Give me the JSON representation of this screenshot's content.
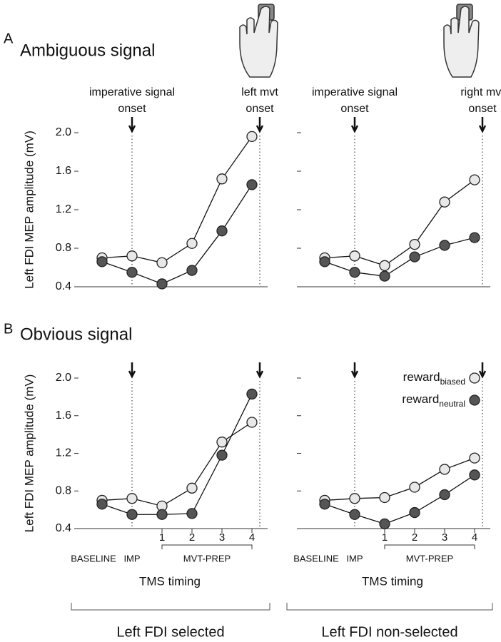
{
  "panels": [
    {
      "letter": "A",
      "title": "Ambiguous signal"
    },
    {
      "letter": "B",
      "title": "Obvious signal"
    }
  ],
  "groups": [
    "Left FDI selected",
    "Left FDI non-selected"
  ],
  "chart_data": [
    {
      "type": "line",
      "ylabel": "Left FDI MEP amplitude (mV)",
      "onset_labels": [
        [
          "imperative signal",
          "onset"
        ],
        [
          "left mvt",
          "onset"
        ]
      ],
      "categories": [
        null,
        null,
        null,
        null,
        null,
        null
      ],
      "series": [
        {
          "name": "reward",
          "subscript": "biased",
          "color": "#e8e8e8",
          "values": [
            0.7,
            0.72,
            0.65,
            0.85,
            1.52,
            1.96
          ]
        },
        {
          "name": "reward",
          "subscript": "neutral",
          "color": "#555555",
          "values": [
            0.66,
            0.55,
            0.43,
            0.57,
            0.98,
            1.46
          ]
        }
      ],
      "ylim": [
        0.4,
        2.0
      ],
      "yticks": [
        0.4,
        0.8,
        1.2,
        1.6,
        {
          "value": 2,
          "label": "2.0"
        }
      ]
    },
    {
      "type": "line",
      "onset_labels": [
        [
          "imperative signal",
          "onset"
        ],
        [
          "right mvt",
          "onset"
        ]
      ],
      "categories": [
        null,
        null,
        null,
        null,
        null,
        null
      ],
      "series": [
        {
          "name": "reward",
          "subscript": "biased",
          "color": "#e8e8e8",
          "values": [
            0.7,
            0.72,
            0.62,
            0.84,
            1.28,
            1.51
          ]
        },
        {
          "name": "reward",
          "subscript": "neutral",
          "color": "#555555",
          "values": [
            0.66,
            0.55,
            0.51,
            0.71,
            0.83,
            0.91
          ]
        }
      ],
      "ylim": [
        0.4,
        2.0
      ],
      "yticks": [
        0.4,
        0.8,
        1.2,
        1.6,
        2
      ]
    },
    {
      "type": "line",
      "ylabel": "Left FDI MEP amplitude (mV)",
      "xlabel": "TMS timing",
      "bracket_label": "MVT-PREP",
      "categories": [
        "BASELINE",
        "IMP",
        "1",
        "2",
        "3",
        "4"
      ],
      "series": [
        {
          "name": "reward",
          "subscript": "biased",
          "color": "#e8e8e8",
          "values": [
            0.7,
            0.72,
            0.64,
            0.83,
            1.32,
            1.53
          ]
        },
        {
          "name": "reward",
          "subscript": "neutral",
          "color": "#555555",
          "values": [
            0.66,
            0.55,
            0.55,
            0.56,
            1.18,
            1.83
          ]
        }
      ],
      "ylim": [
        0.4,
        2.0
      ],
      "yticks": [
        0.4,
        0.8,
        1.2,
        1.6,
        {
          "value": 2,
          "label": "2.0"
        }
      ]
    },
    {
      "type": "line",
      "xlabel": "TMS timing",
      "bracket_label": "MVT-PREP",
      "legend": "upper right",
      "categories": [
        "BASELINE",
        "IMP",
        "1",
        "2",
        "3",
        "4"
      ],
      "series": [
        {
          "name": "reward",
          "subscript": "biased",
          "color": "#e8e8e8",
          "values": [
            0.7,
            0.72,
            0.73,
            0.84,
            1.03,
            1.15
          ]
        },
        {
          "name": "reward",
          "subscript": "neutral",
          "color": "#555555",
          "values": [
            0.66,
            0.55,
            0.45,
            0.57,
            0.76,
            0.97
          ]
        }
      ],
      "ylim": [
        0.4,
        2.0
      ],
      "yticks": [
        0.4,
        0.8,
        1.2,
        1.6,
        2
      ]
    }
  ]
}
